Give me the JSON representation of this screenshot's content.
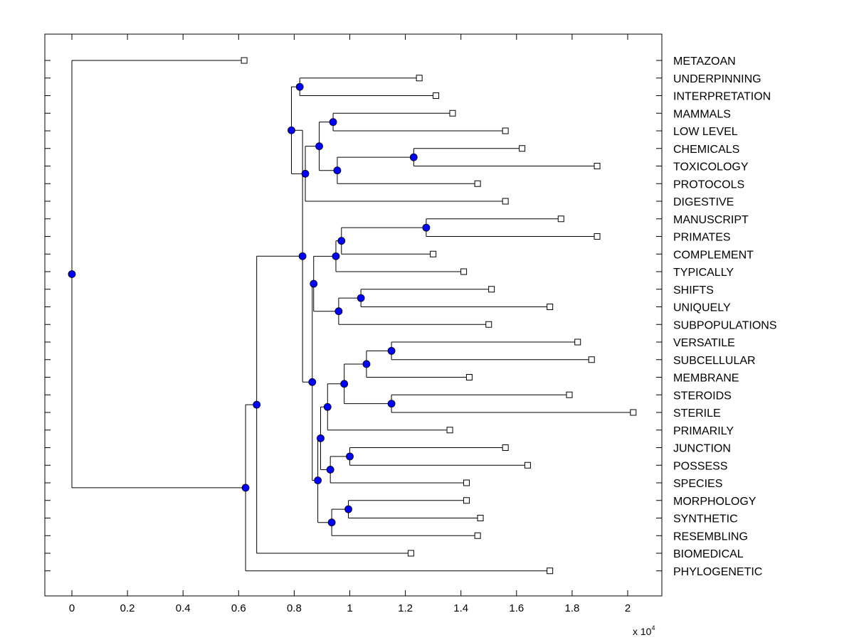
{
  "chart_data": {
    "type": "dendrogram",
    "title": "",
    "xlabel": "",
    "ylabel": "",
    "x_scale_label": "x 10",
    "x_scale_exponent": "4",
    "xlim": [
      -0.1,
      2.12
    ],
    "xticks": [
      0,
      0.2,
      0.4,
      0.6,
      0.8,
      1,
      1.2,
      1.4,
      1.6,
      1.8,
      2
    ],
    "xtick_labels": [
      "0",
      "0.2",
      "0.4",
      "0.6",
      "0.8",
      "1",
      "1.2",
      "1.4",
      "1.6",
      "1.8",
      "2"
    ],
    "leaf_count": 30,
    "leaves": [
      {
        "label": "METAZOAN",
        "x": 0.62
      },
      {
        "label": "UNDERPINNING",
        "x": 1.25
      },
      {
        "label": "INTERPRETATION",
        "x": 1.31
      },
      {
        "label": "MAMMALS",
        "x": 1.37
      },
      {
        "label": "LOW LEVEL",
        "x": 1.56
      },
      {
        "label": "CHEMICALS",
        "x": 1.62
      },
      {
        "label": "TOXICOLOGY",
        "x": 1.89
      },
      {
        "label": "PROTOCOLS",
        "x": 1.46
      },
      {
        "label": "DIGESTIVE",
        "x": 1.56
      },
      {
        "label": "MANUSCRIPT",
        "x": 1.76
      },
      {
        "label": "PRIMATES",
        "x": 1.89
      },
      {
        "label": "COMPLEMENT",
        "x": 1.3
      },
      {
        "label": "TYPICALLY",
        "x": 1.41
      },
      {
        "label": "SHIFTS",
        "x": 1.51
      },
      {
        "label": "UNIQUELY",
        "x": 1.72
      },
      {
        "label": "SUBPOPULATIONS",
        "x": 1.5
      },
      {
        "label": "VERSATILE",
        "x": 1.82
      },
      {
        "label": "SUBCELLULAR",
        "x": 1.87
      },
      {
        "label": "MEMBRANE",
        "x": 1.43
      },
      {
        "label": "STEROIDS",
        "x": 1.79
      },
      {
        "label": "STERILE",
        "x": 2.02
      },
      {
        "label": "PRIMARILY",
        "x": 1.36
      },
      {
        "label": "JUNCTION",
        "x": 1.56
      },
      {
        "label": "POSSESS",
        "x": 1.64
      },
      {
        "label": "SPECIES",
        "x": 1.42
      },
      {
        "label": "MORPHOLOGY",
        "x": 1.42
      },
      {
        "label": "SYNTHETIC",
        "x": 1.47
      },
      {
        "label": "RESEMBLING",
        "x": 1.46
      },
      {
        "label": "BIOMEDICAL",
        "x": 1.22
      },
      {
        "label": "PHYLOGENETIC",
        "x": 1.72
      }
    ],
    "nodes": [
      {
        "id": "n1",
        "x": 0.82,
        "children": [
          "L1",
          "L2"
        ]
      },
      {
        "id": "n2",
        "x": 0.94,
        "children": [
          "L3",
          "L4"
        ]
      },
      {
        "id": "n3",
        "x": 1.23,
        "children": [
          "L5",
          "L6"
        ]
      },
      {
        "id": "n4",
        "x": 0.955,
        "children": [
          "n3",
          "L7"
        ]
      },
      {
        "id": "n5",
        "x": 0.89,
        "children": [
          "n2",
          "n4"
        ]
      },
      {
        "id": "n6",
        "x": 0.84,
        "children": [
          "n5",
          "L8"
        ]
      },
      {
        "id": "n7",
        "x": 0.79,
        "children": [
          "n1",
          "n6"
        ]
      },
      {
        "id": "n8",
        "x": 1.275,
        "children": [
          "L9",
          "L10"
        ]
      },
      {
        "id": "n9",
        "x": 0.97,
        "children": [
          "n8",
          "L11"
        ]
      },
      {
        "id": "n10",
        "x": 0.95,
        "children": [
          "n9",
          "L12"
        ]
      },
      {
        "id": "n11",
        "x": 1.04,
        "children": [
          "L13",
          "L14"
        ]
      },
      {
        "id": "n12",
        "x": 0.96,
        "children": [
          "n11",
          "L15"
        ]
      },
      {
        "id": "n13",
        "x": 0.87,
        "children": [
          "n10",
          "n12"
        ]
      },
      {
        "id": "n14",
        "x": 1.15,
        "children": [
          "L16",
          "L17"
        ]
      },
      {
        "id": "n15",
        "x": 1.06,
        "children": [
          "n14",
          "L18"
        ]
      },
      {
        "id": "n16",
        "x": 1.15,
        "children": [
          "L19",
          "L20"
        ]
      },
      {
        "id": "n17",
        "x": 0.98,
        "children": [
          "n15",
          "n16"
        ]
      },
      {
        "id": "n18",
        "x": 0.92,
        "children": [
          "n17",
          "L21"
        ]
      },
      {
        "id": "n19",
        "x": 1.0,
        "children": [
          "L22",
          "L23"
        ]
      },
      {
        "id": "n20",
        "x": 0.93,
        "children": [
          "n19",
          "L24"
        ]
      },
      {
        "id": "n21",
        "x": 0.895,
        "children": [
          "n18",
          "n20"
        ]
      },
      {
        "id": "n22",
        "x": 0.995,
        "children": [
          "L25",
          "L26"
        ]
      },
      {
        "id": "n23",
        "x": 0.935,
        "children": [
          "n22",
          "L27"
        ]
      },
      {
        "id": "n24",
        "x": 0.885,
        "children": [
          "n21",
          "n23"
        ]
      },
      {
        "id": "n25",
        "x": 0.865,
        "children": [
          "n13",
          "n24"
        ]
      },
      {
        "id": "n26",
        "x": 0.83,
        "children": [
          "n7",
          "n25"
        ]
      },
      {
        "id": "n27",
        "x": 0.665,
        "children": [
          "n26",
          "L28"
        ]
      },
      {
        "id": "n28",
        "x": 0.625,
        "children": [
          "n27",
          "L29"
        ]
      },
      {
        "id": "n29",
        "x": 0.0,
        "children": [
          "L0",
          "n28"
        ]
      }
    ],
    "colors": {
      "node_fill": "#0000ff",
      "leaf_fill": "#ffffff",
      "line": "#000000",
      "background": "#ffffff"
    }
  }
}
